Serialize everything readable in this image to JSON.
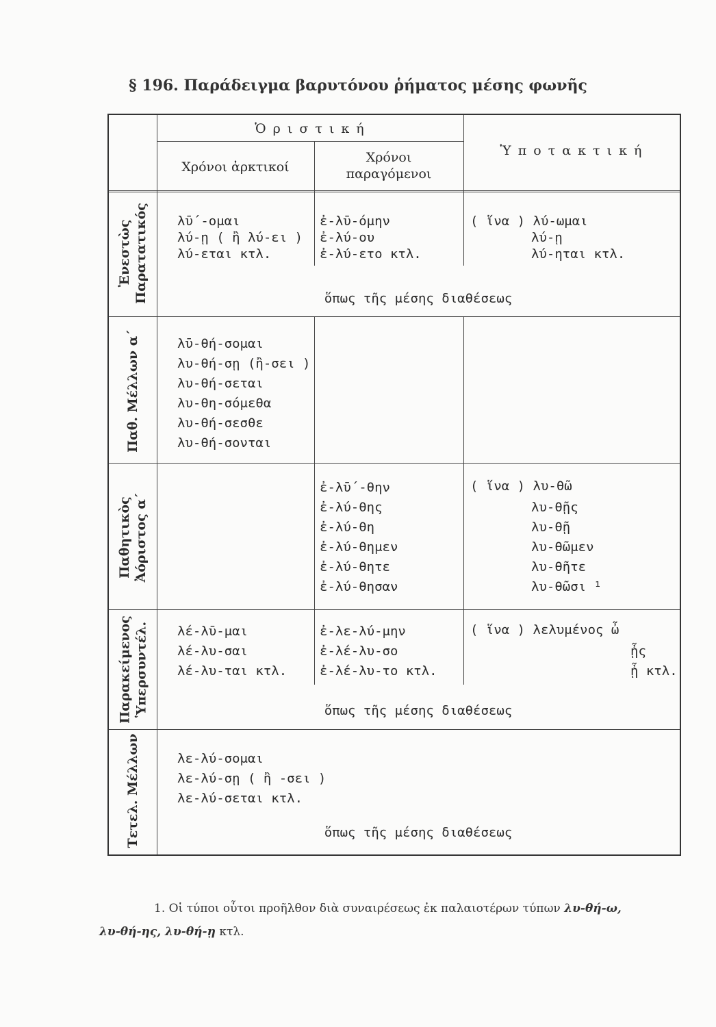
{
  "title": "§ 196. Παράδειγμα βαρυτόνου ῥήματος μέσης φωνῆς",
  "header": {
    "oristiki": "Ὁ ρ ι σ τ ι κ ή",
    "ypotaktiki": "Ὑ π ο τ α κ τ ι κ ή",
    "archikoi": "Χρόνοι ἀρκτικοί",
    "paragomenoi_1": "Χρόνοι",
    "paragomenoi_2": "παραγόμενοι"
  },
  "rows": [
    {
      "label": [
        "Ἐνεστὼς",
        "Παρατατικός"
      ],
      "c1": "λῡ΄-ομαι\nλύ-ῃ ( ἢ λύ-ει )\nλύ-εται κτλ.",
      "c2": "ἐ-λῡ-όμην\nἐ-λύ-ου\nἐ-λύ-ετο κτλ.",
      "c3a": "( ἵνα ) λύ-ωμαι",
      "c3b": "λύ-ῃ\nλύ-ηται κτλ.",
      "note": "ὅπως τῆς μέσης διαθέσεως"
    },
    {
      "label": [
        "Παθ. Μέλλων α΄"
      ],
      "c1": "λῡ-θή-σομαι\nλυ-θή-σῃ (ἢ-σει )\nλυ-θή-σεται\nλυ-θη-σόμεθα\nλυ-θή-σεσθε\nλυ-θή-σονται"
    },
    {
      "label": [
        "Παθητικὸς",
        "Ἀόριστος α΄"
      ],
      "c2": "ἐ-λῡ΄-θην\nἐ-λύ-θης\nἐ-λύ-θη\nἐ-λύ-θημεν\nἐ-λύ-θητε\nἐ-λύ-θησαν",
      "c3a": "( ἵνα ) λυ-θῶ",
      "c3b": "λυ-θῇς\nλυ-θῇ\nλυ-θῶμεν\nλυ-θῆτε\nλυ-θῶσι ¹"
    },
    {
      "label": [
        "Παρακείμενος",
        "Ὑπερσυντέλ."
      ],
      "c1": "λέ-λῡ-μαι\nλέ-λυ-σαι\nλέ-λυ-ται κτλ.",
      "c2": "ἐ-λε-λύ-μην\nἐ-λέ-λυ-σο\nἐ-λέ-λυ-το κτλ.",
      "c3a": "( ἵνα ) λελυμένος ὦ",
      "c3b": "ᾖς\nᾖ κτλ.",
      "note": "ὅπως τῆς μέσης διαθέσεως"
    },
    {
      "label": [
        "Τετελ. Μέλλων"
      ],
      "c1": "λε-λύ-σομαι\nλε-λύ-σῃ ( ἢ -σει )\nλε-λύ-σεται κτλ.",
      "note": "ὅπως τῆς μέσης διαθέσεως"
    }
  ],
  "footnote": {
    "text": "1. Οἱ τύποι οὗτοι προῆλθον διὰ συναιρέσεως ἐκ παλαιοτέρων τύπων ",
    "forms1": "λυ-θή-ω,",
    "forms2": "λυ-θή-ης, λυ-θή-ῃ",
    "end": " κτλ."
  }
}
